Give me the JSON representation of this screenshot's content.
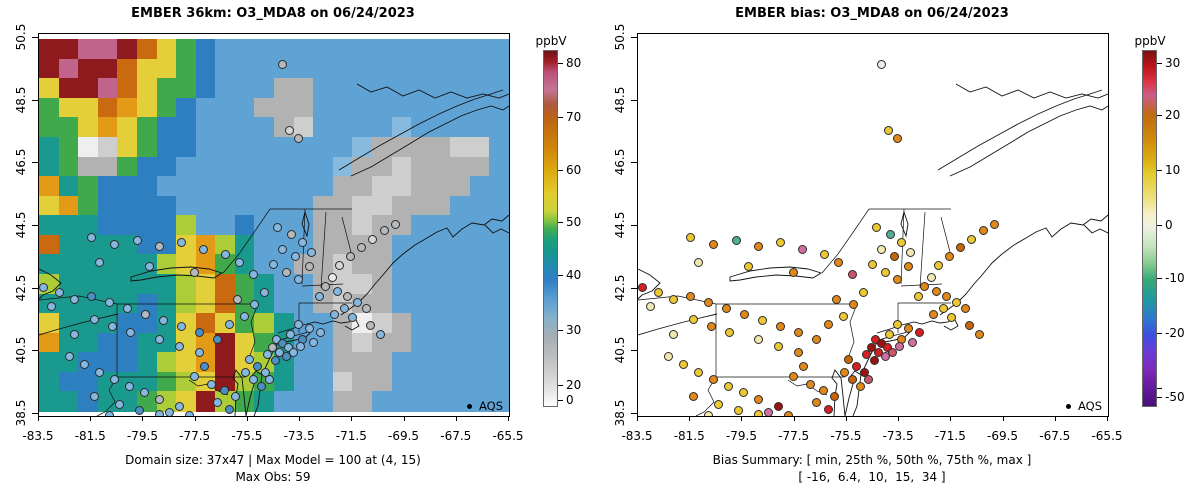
{
  "figure": {
    "colorbar_unit": "ppbV",
    "legend_label": "AQS"
  },
  "chart_data": [
    {
      "type": "heatmap",
      "title": "EMBER 36km: O3_MDA8 on 06/24/2023",
      "xlabel_ticks": [
        "-83.5",
        "-81.5",
        "-79.5",
        "-77.5",
        "-75.5",
        "-73.5",
        "-71.5",
        "-69.5",
        "-67.5",
        "-65.5"
      ],
      "ylabel_ticks": [
        "50.5",
        "48.5",
        "46.5",
        "44.5",
        "42.5",
        "40.5",
        "38.5"
      ],
      "lon_range": [
        -83.5,
        -65.5
      ],
      "lat_range": [
        38.5,
        50.5
      ],
      "captions": [
        "Domain size: 37x47 | Max Model = 100 at (4, 15)",
        "Max Obs: 59"
      ],
      "stats": {
        "domain_size": "37x47",
        "max_model": 100,
        "max_model_at": "(4, 15)",
        "max_obs": 59
      },
      "colorbar": {
        "unit": "ppbV",
        "ticks": [
          {
            "label": "80",
            "f": 0.037
          },
          {
            "label": "70",
            "f": 0.189
          },
          {
            "label": "60",
            "f": 0.338
          },
          {
            "label": "50",
            "f": 0.485
          },
          {
            "label": "40",
            "f": 0.634
          },
          {
            "label": "30",
            "f": 0.789
          },
          {
            "label": "20",
            "f": 0.944
          },
          {
            "label": "0",
            "f": 0.986
          }
        ],
        "stops": [
          [
            0,
            "#6f1216"
          ],
          [
            0.03,
            "#9e2026"
          ],
          [
            0.06,
            "#bb5078"
          ],
          [
            0.11,
            "#c47693"
          ],
          [
            0.15,
            "#ad5a3f"
          ],
          [
            0.19,
            "#bb6414"
          ],
          [
            0.27,
            "#cf840c"
          ],
          [
            0.34,
            "#dcab10"
          ],
          [
            0.4,
            "#e2cb2e"
          ],
          [
            0.45,
            "#cdd23a"
          ],
          [
            0.475,
            "#8cc53f"
          ],
          [
            0.5,
            "#44ad53"
          ],
          [
            0.53,
            "#1fa077"
          ],
          [
            0.565,
            "#18968e"
          ],
          [
            0.61,
            "#2489b4"
          ],
          [
            0.645,
            "#2f7ec2"
          ],
          [
            0.7,
            "#5c9fd2"
          ],
          [
            0.755,
            "#86b2cb"
          ],
          [
            0.8,
            "#a4aeb4"
          ],
          [
            0.86,
            "#bcbec0"
          ],
          [
            0.92,
            "#d3d4d6"
          ],
          [
            0.965,
            "#e9eaeb"
          ],
          [
            1,
            "#fcfcfc"
          ]
        ]
      },
      "grid": {
        "rows": 19,
        "cols": 24,
        "palette": {
          "R": "#8f1a1d",
          "P": "#c0648c",
          "O": "#c96a10",
          "o": "#e39a17",
          "Y": "#e2cf3a",
          "g": "#accd38",
          "G": "#3fa94b",
          "E": "#1a9a8e",
          "B": "#2e7fc0",
          "b": "#5fa2d4",
          "L": "#87bade",
          "A": "#b2b2b2",
          "a": "#cecece",
          "W": "#efefef"
        },
        "cells": [
          "RRPPROYGBbbbbbbbbbbbbbbb",
          "RPRROYYGBbbbbbbbbbbbbbbb",
          "YRRPOYGGBbbbAAbbbbbbbbbb",
          "GYYOoYGBbbbAAAbbbbbbbbbb",
          "GGYoYGBBbbbbAabbbbLbbbbb",
          "EGWaYGBBbbbbbbbbLAAAAaab",
          "EGAAGBBbbbbbbbbLAAaAAAAb",
          "oEGBBBbbbbbbbbbAAaaAAAbb",
          "YoGBBBBbbbbbbbAAaaAAAbbb",
          "EEEBBBBgbbBbbbAAaAAbbbbb",
          "OEEEEBBYogEbbbAAAAbbbbbb",
          "EEEEEEgYoGEbbAAaAAbbbbbb",
          "gEEEEEEgYOGEbbAaaAbbbbbb",
          "EEEEEBEgYOGEbbAaAAbbbbbb",
          "YEEEBBEYOYGgEbbAWaAbbbbb",
          "oEEBBEEYoRYGEbbAaAAbbbbb",
          "EEBBBEgYoRYgEbbAAAbbbbbb",
          "EBBEEEGgYRgGEbbaAAbbbbbb",
          "EEBEEGgYRgGEbbbAAbbbbbbb"
        ]
      }
    },
    {
      "type": "scatter",
      "title": "EMBER bias: O3_MDA8 on 06/24/2023",
      "xlabel_ticks": [
        "-83.5",
        "-81.5",
        "-79.5",
        "-77.5",
        "-75.5",
        "-73.5",
        "-71.5",
        "-69.5",
        "-67.5",
        "-65.5"
      ],
      "ylabel_ticks": [
        "50.5",
        "48.5",
        "46.5",
        "44.5",
        "42.5",
        "40.5",
        "38.5"
      ],
      "lon_range": [
        -83.5,
        -65.5
      ],
      "lat_range": [
        38.5,
        50.5
      ],
      "captions": [
        "Bias Summary: [ min, 25th %, 50th %, 75th %, max ]",
        "[ -16,  6.4,  10,  15,  34 ]"
      ],
      "bias_summary": {
        "min": -16,
        "p25": 6.4,
        "p50": 10,
        "p75": 15,
        "max": 34
      },
      "colorbar": {
        "unit": "ppbV",
        "ticks": [
          {
            "label": "30",
            "f": 0.037
          },
          {
            "label": "20",
            "f": 0.183
          },
          {
            "label": "10",
            "f": 0.338
          },
          {
            "label": "0",
            "f": 0.493
          },
          {
            "label": "-10",
            "f": 0.642
          },
          {
            "label": "-20",
            "f": 0.797
          },
          {
            "label": "",
            "f": 0.952
          },
          {
            "label": "-50",
            "f": 0.977
          }
        ],
        "stops": [
          [
            0,
            "#7c1013"
          ],
          [
            0.045,
            "#c0151b"
          ],
          [
            0.09,
            "#dc3848"
          ],
          [
            0.125,
            "#cc5c8a"
          ],
          [
            0.18,
            "#c06b12"
          ],
          [
            0.25,
            "#d08a0c"
          ],
          [
            0.31,
            "#dcb114"
          ],
          [
            0.345,
            "#e2cb2e"
          ],
          [
            0.41,
            "#ecdf77"
          ],
          [
            0.46,
            "#f4f0c8"
          ],
          [
            0.495,
            "#eef2e2"
          ],
          [
            0.55,
            "#c4e4bc"
          ],
          [
            0.6,
            "#84cb8e"
          ],
          [
            0.645,
            "#35a878"
          ],
          [
            0.7,
            "#1f9aa2"
          ],
          [
            0.755,
            "#2f77cf"
          ],
          [
            0.8,
            "#3c4fe0"
          ],
          [
            0.85,
            "#6d3ad8"
          ],
          [
            0.9,
            "#7e28b8"
          ],
          [
            0.95,
            "#621a9a"
          ],
          [
            1,
            "#4a1279"
          ]
        ]
      }
    }
  ],
  "stations": {
    "left_palette": {
      "lb": "#85b8e0",
      "bl": "#4a90c4",
      "gy": "#b4b9bd",
      "lg": "#d3d6d9",
      "wh": "#ebebeb"
    },
    "right_palette": {
      "y": "#ecc832",
      "o": "#e0881a",
      "O": "#c8650a",
      "r": "#d41f24",
      "dr": "#9b1313",
      "p": "#d06fa0",
      "ro": "#c85568",
      "py": "#f2e8b0",
      "g": "#4fb097",
      "w": "#ececec"
    },
    "points": [
      [
        243,
        30,
        "gy",
        "w"
      ],
      [
        250,
        96,
        "lg",
        "y"
      ],
      [
        259,
        104,
        "gy",
        "o"
      ],
      [
        345,
        196,
        "gy",
        "o"
      ],
      [
        333,
        205,
        "lg",
        "y"
      ],
      [
        322,
        213,
        "gy",
        "O"
      ],
      [
        311,
        222,
        "gy",
        "o"
      ],
      [
        300,
        231,
        "lg",
        "y"
      ],
      [
        293,
        243,
        "wh",
        "py"
      ],
      [
        286,
        252,
        "gy",
        "o"
      ],
      [
        280,
        262,
        "lb",
        "y"
      ],
      [
        356,
        190,
        "gy",
        "o"
      ],
      [
        238,
        193,
        "lb",
        "y"
      ],
      [
        252,
        200,
        "gy",
        "g"
      ],
      [
        263,
        208,
        "lb",
        "y"
      ],
      [
        243,
        215,
        "lb",
        "py"
      ],
      [
        256,
        222,
        "lb",
        "O"
      ],
      [
        234,
        230,
        "lb",
        "y"
      ],
      [
        247,
        238,
        "gy",
        "y"
      ],
      [
        259,
        245,
        "lb",
        "o"
      ],
      [
        270,
        232,
        "gy",
        "o"
      ],
      [
        272,
        218,
        "lb",
        "py"
      ],
      [
        298,
        257,
        "lb",
        "o"
      ],
      [
        308,
        262,
        "gy",
        "o"
      ],
      [
        318,
        268,
        "lb",
        "y"
      ],
      [
        327,
        274,
        "gy",
        "o"
      ],
      [
        305,
        274,
        "lb",
        "y"
      ],
      [
        295,
        280,
        "lb",
        "o"
      ],
      [
        313,
        283,
        "lb",
        "y"
      ],
      [
        331,
        291,
        "gy",
        "O"
      ],
      [
        341,
        300,
        "lb",
        "o"
      ],
      [
        259,
        290,
        "lb",
        "y"
      ],
      [
        270,
        294,
        "lb",
        "o"
      ],
      [
        281,
        298,
        "lb",
        "r"
      ],
      [
        251,
        300,
        "lb",
        "y"
      ],
      [
        263,
        305,
        "bl",
        "o"
      ],
      [
        274,
        308,
        "lb",
        "p"
      ],
      [
        237,
        305,
        "lb",
        "r"
      ],
      [
        243,
        309,
        "bl",
        "dr"
      ],
      [
        249,
        313,
        "lb",
        "r"
      ],
      [
        233,
        313,
        "gy",
        "dr"
      ],
      [
        240,
        318,
        "lb",
        "r"
      ],
      [
        247,
        322,
        "bl",
        "p"
      ],
      [
        254,
        318,
        "lb",
        "ro"
      ],
      [
        261,
        312,
        "lb",
        "p"
      ],
      [
        228,
        320,
        "lb",
        "r"
      ],
      [
        236,
        326,
        "bl",
        "dr"
      ],
      [
        52,
        203,
        "lb",
        "y"
      ],
      [
        75,
        210,
        "lb",
        "o"
      ],
      [
        98,
        206,
        "lb",
        "g"
      ],
      [
        120,
        212,
        "gy",
        "o"
      ],
      [
        142,
        208,
        "lb",
        "y"
      ],
      [
        164,
        215,
        "lb",
        "p"
      ],
      [
        186,
        220,
        "lb",
        "y"
      ],
      [
        60,
        228,
        "lb",
        "py"
      ],
      [
        110,
        232,
        "lb",
        "y"
      ],
      [
        155,
        238,
        "gy",
        "o"
      ],
      [
        200,
        228,
        "lb",
        "o"
      ],
      [
        214,
        240,
        "lb",
        "ro"
      ],
      [
        4,
        253,
        "lb",
        "r"
      ],
      [
        20,
        258,
        "lb",
        "y"
      ],
      [
        35,
        265,
        "lb",
        "y"
      ],
      [
        12,
        272,
        "lb",
        "py"
      ],
      [
        52,
        262,
        "bl",
        "o"
      ],
      [
        70,
        268,
        "lb",
        "o"
      ],
      [
        88,
        274,
        "lb",
        "o"
      ],
      [
        106,
        280,
        "gy",
        "o"
      ],
      [
        124,
        286,
        "lb",
        "y"
      ],
      [
        142,
        292,
        "lb",
        "o"
      ],
      [
        160,
        298,
        "bl",
        "o"
      ],
      [
        55,
        285,
        "lb",
        "y"
      ],
      [
        73,
        292,
        "lb",
        "o"
      ],
      [
        91,
        298,
        "lb",
        "y"
      ],
      [
        35,
        300,
        "lb",
        "py"
      ],
      [
        120,
        305,
        "lb",
        "py"
      ],
      [
        140,
        312,
        "lb",
        "y"
      ],
      [
        160,
        318,
        "lb",
        "o"
      ],
      [
        178,
        305,
        "bl",
        "o"
      ],
      [
        190,
        290,
        "lb",
        "o"
      ],
      [
        205,
        282,
        "lb",
        "y"
      ],
      [
        198,
        265,
        "gy",
        "o"
      ],
      [
        215,
        270,
        "lb",
        "o"
      ],
      [
        225,
        258,
        "lb",
        "y"
      ],
      [
        210,
        325,
        "lb",
        "O"
      ],
      [
        218,
        332,
        "bl",
        "r"
      ],
      [
        226,
        338,
        "lb",
        "dr"
      ],
      [
        214,
        345,
        "lb",
        "O"
      ],
      [
        222,
        352,
        "bl",
        "o"
      ],
      [
        230,
        345,
        "lb",
        "ro"
      ],
      [
        206,
        338,
        "lb",
        "o"
      ],
      [
        172,
        350,
        "lb",
        "o"
      ],
      [
        185,
        356,
        "bl",
        "o"
      ],
      [
        196,
        362,
        "lb",
        "O"
      ],
      [
        178,
        368,
        "lb",
        "o"
      ],
      [
        190,
        375,
        "bl",
        "r"
      ],
      [
        140,
        372,
        "lb",
        "dr"
      ],
      [
        130,
        378,
        "lb",
        "p"
      ],
      [
        120,
        365,
        "gy",
        "o"
      ],
      [
        105,
        358,
        "lb",
        "y"
      ],
      [
        90,
        352,
        "lb",
        "y"
      ],
      [
        75,
        345,
        "lb",
        "o"
      ],
      [
        60,
        338,
        "lb",
        "y"
      ],
      [
        45,
        330,
        "lb",
        "y"
      ],
      [
        30,
        322,
        "lb",
        "py"
      ],
      [
        155,
        342,
        "lb",
        "o"
      ],
      [
        165,
        332,
        "bl",
        "o"
      ],
      [
        55,
        362,
        "lb",
        "o"
      ],
      [
        80,
        370,
        "lb",
        "y"
      ],
      [
        100,
        376,
        "bl",
        "y"
      ],
      [
        70,
        381,
        "lb",
        "py"
      ],
      [
        120,
        380,
        "lb",
        "y"
      ],
      [
        150,
        381,
        "lb",
        "o"
      ]
    ]
  }
}
